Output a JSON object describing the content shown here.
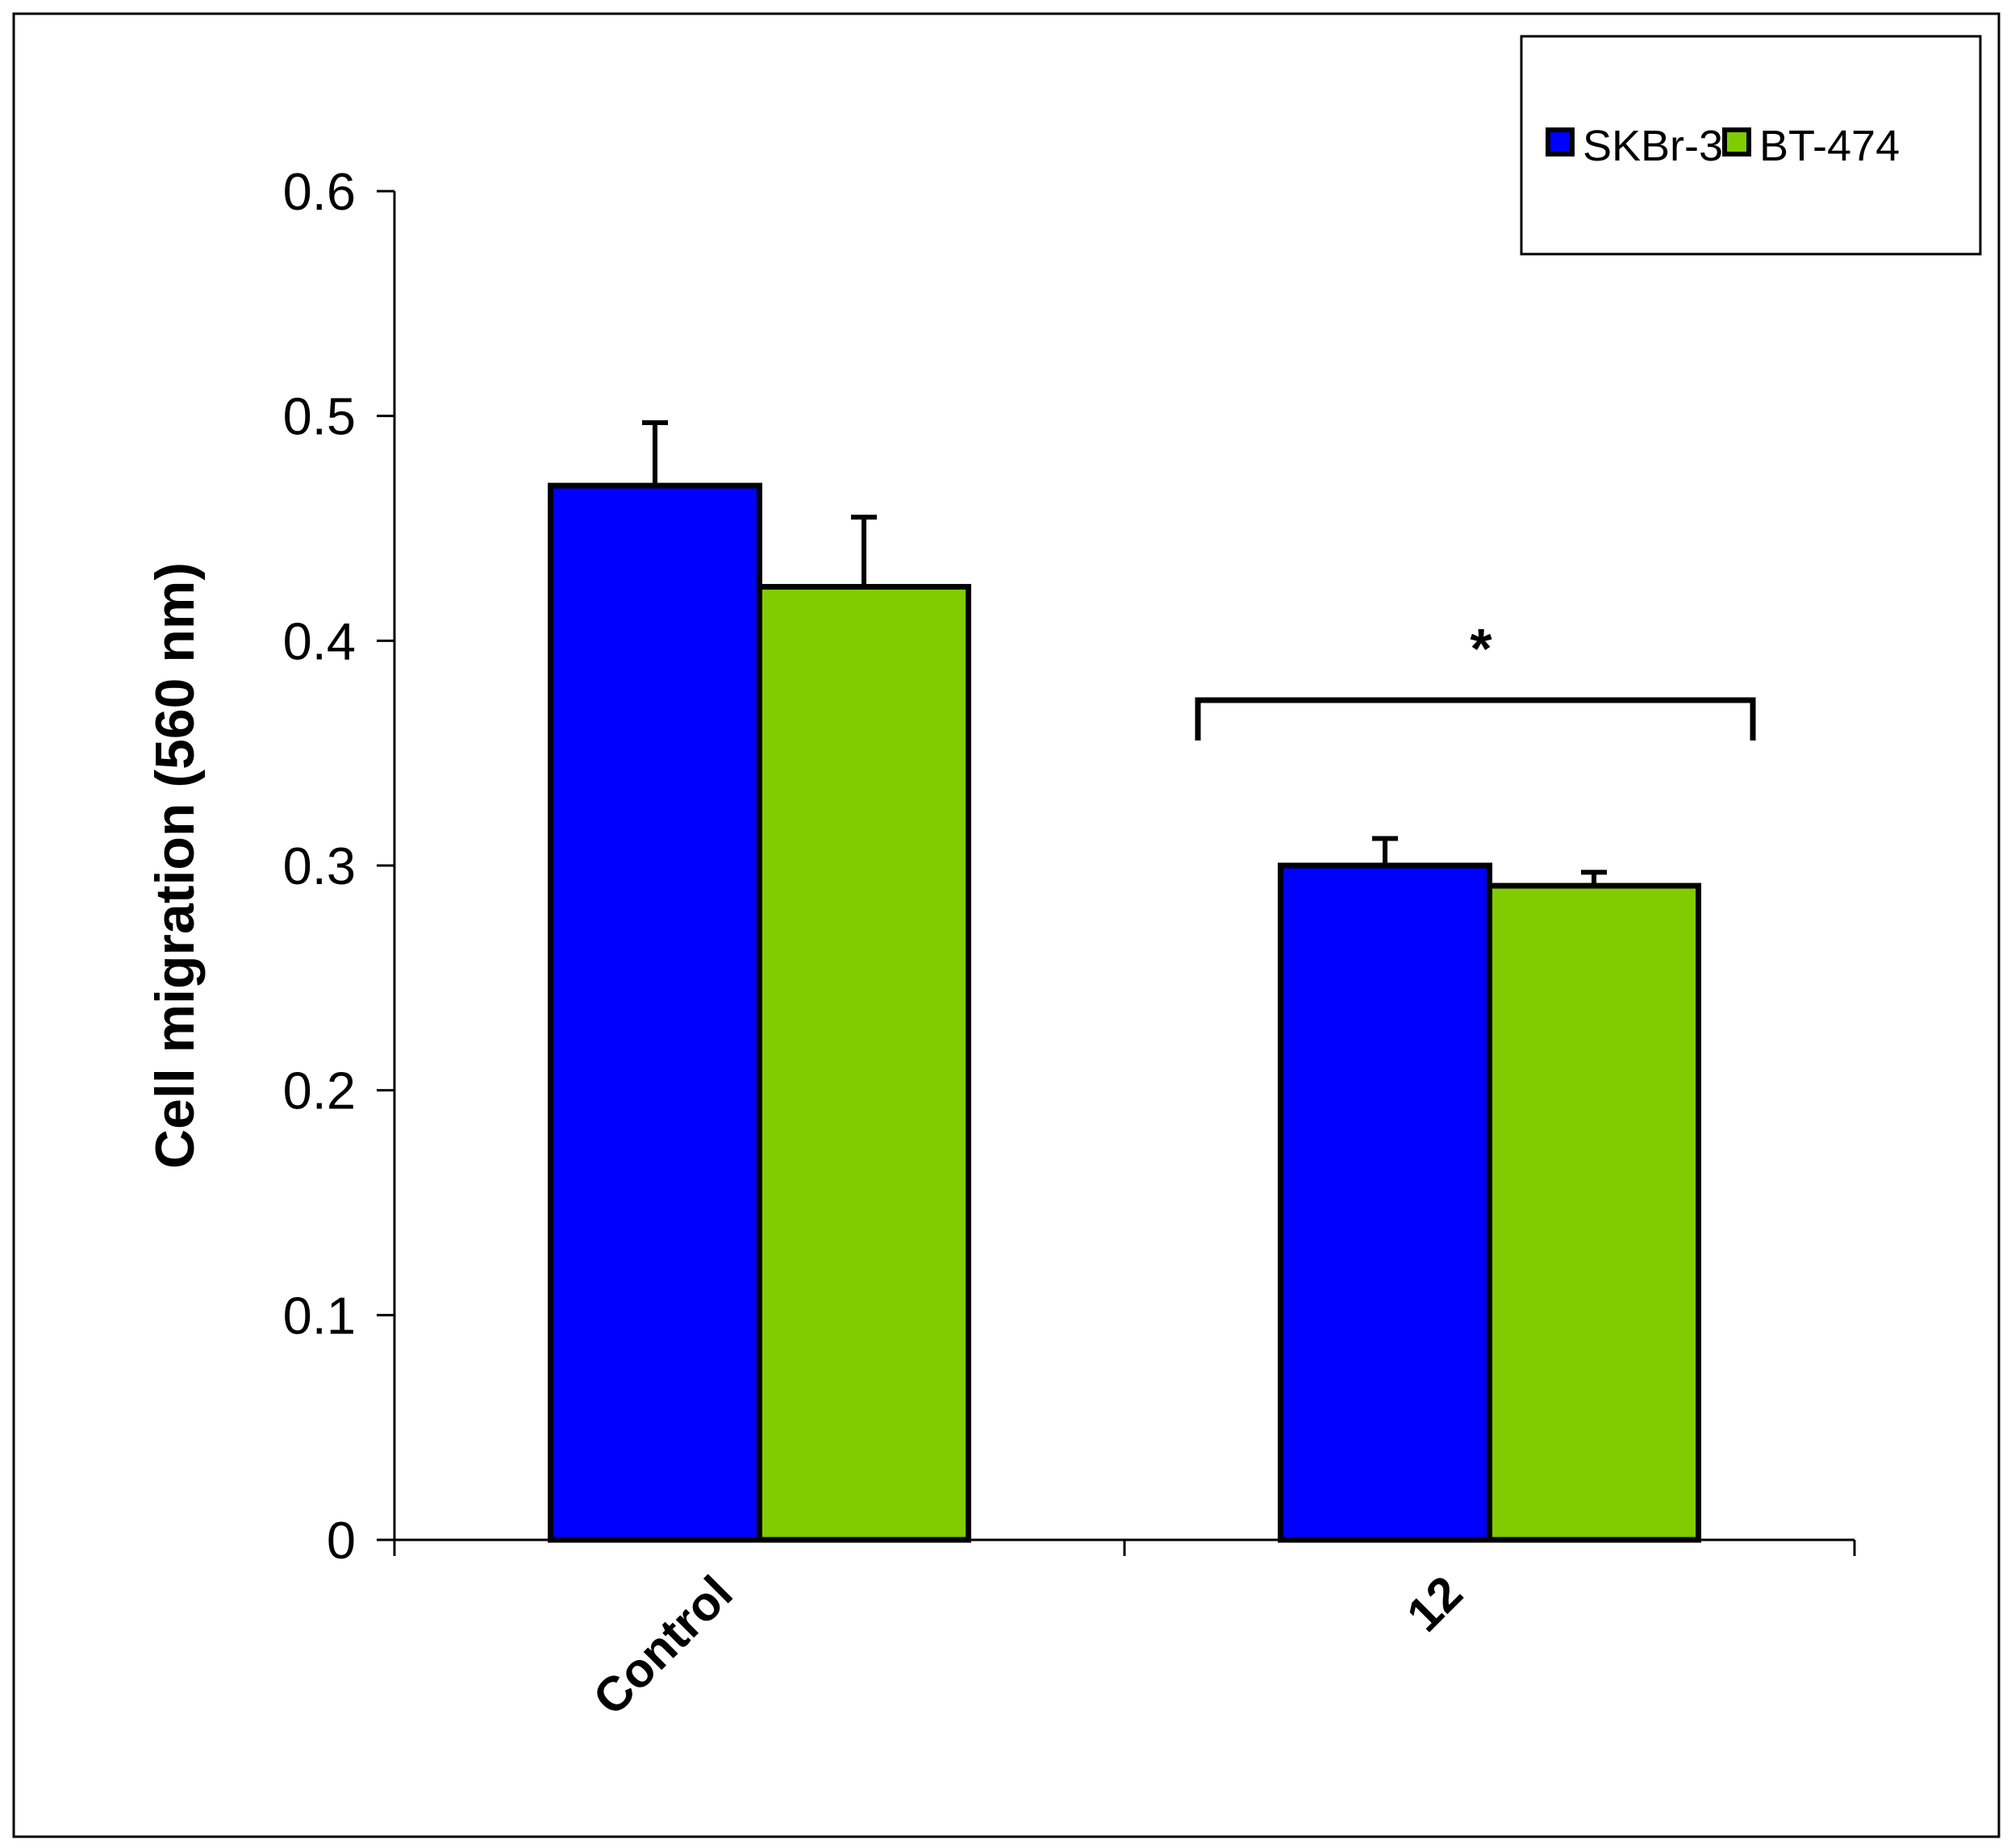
{
  "chart_data": {
    "type": "bar",
    "title": "",
    "xlabel": "",
    "ylabel": "Cell migration (560 nm)",
    "ylim": [
      0,
      0.6
    ],
    "yticks": [
      "0",
      "0.1",
      "0.2",
      "0.3",
      "0.4",
      "0.5",
      "0.6"
    ],
    "categories": [
      "Control",
      "12"
    ],
    "series": [
      {
        "name": "SKBr-3",
        "color": "#0000ff",
        "values": [
          0.469,
          0.3
        ],
        "errors": [
          0.028,
          0.012
        ]
      },
      {
        "name": "BT-474",
        "color": "#80cc00",
        "values": [
          0.424,
          0.291
        ],
        "errors": [
          0.031,
          0.006
        ]
      }
    ],
    "annotation": {
      "text": "*",
      "category": "12"
    },
    "legend_position": "top-right",
    "grid": false
  }
}
